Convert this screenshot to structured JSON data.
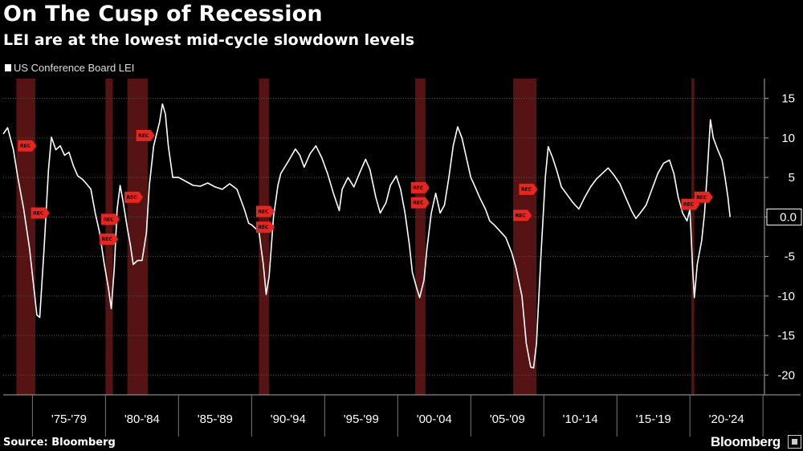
{
  "chart_data": {
    "type": "line",
    "title": "On The Cusp of Recession",
    "subtitle": "LEI are at the lowest mid-cycle slowdown levels",
    "series": [
      {
        "name": "US Conference Board LEI",
        "color": "#ffffff",
        "points": [
          [
            1973.0,
            10.5
          ],
          [
            1973.3,
            11.3
          ],
          [
            1973.7,
            8.5
          ],
          [
            1974.0,
            5.0
          ],
          [
            1974.4,
            1.0
          ],
          [
            1974.8,
            -4.0
          ],
          [
            1975.1,
            -9.0
          ],
          [
            1975.3,
            -12.4
          ],
          [
            1975.5,
            -12.7
          ],
          [
            1975.8,
            -4.0
          ],
          [
            1976.1,
            6.0
          ],
          [
            1976.3,
            10.1
          ],
          [
            1976.6,
            8.5
          ],
          [
            1976.9,
            9.0
          ],
          [
            1977.2,
            7.8
          ],
          [
            1977.5,
            8.2
          ],
          [
            1977.8,
            6.5
          ],
          [
            1978.1,
            5.2
          ],
          [
            1978.4,
            4.8
          ],
          [
            1978.7,
            4.2
          ],
          [
            1979.0,
            3.5
          ],
          [
            1979.3,
            0.5
          ],
          [
            1979.6,
            -2.0
          ],
          [
            1979.9,
            -5.8
          ],
          [
            1980.2,
            -9.0
          ],
          [
            1980.4,
            -11.6
          ],
          [
            1980.6,
            -6.5
          ],
          [
            1980.8,
            1.0
          ],
          [
            1981.0,
            4.0
          ],
          [
            1981.2,
            2.0
          ],
          [
            1981.5,
            -1.5
          ],
          [
            1981.7,
            -3.5
          ],
          [
            1981.9,
            -6.0
          ],
          [
            1982.2,
            -5.5
          ],
          [
            1982.5,
            -5.5
          ],
          [
            1982.8,
            -2.0
          ],
          [
            1983.0,
            4.0
          ],
          [
            1983.3,
            9.0
          ],
          [
            1983.7,
            12.0
          ],
          [
            1983.9,
            14.3
          ],
          [
            1984.1,
            13.0
          ],
          [
            1984.3,
            9.0
          ],
          [
            1984.6,
            5.0
          ],
          [
            1985.0,
            5.0
          ],
          [
            1985.5,
            4.5
          ],
          [
            1986.0,
            4.0
          ],
          [
            1986.5,
            3.9
          ],
          [
            1987.0,
            4.3
          ],
          [
            1987.5,
            3.8
          ],
          [
            1988.0,
            3.5
          ],
          [
            1988.5,
            4.2
          ],
          [
            1989.0,
            3.5
          ],
          [
            1989.5,
            1.0
          ],
          [
            1989.8,
            -0.8
          ],
          [
            1990.0,
            -1.0
          ],
          [
            1990.3,
            -1.5
          ],
          [
            1990.5,
            -1.8
          ],
          [
            1990.8,
            -6.0
          ],
          [
            1991.0,
            -9.8
          ],
          [
            1991.2,
            -7.5
          ],
          [
            1991.5,
            0.0
          ],
          [
            1991.8,
            4.0
          ],
          [
            1992.0,
            5.5
          ],
          [
            1992.5,
            7.0
          ],
          [
            1993.0,
            8.6
          ],
          [
            1993.3,
            7.8
          ],
          [
            1993.6,
            6.3
          ],
          [
            1994.0,
            8.0
          ],
          [
            1994.4,
            9.0
          ],
          [
            1994.8,
            7.5
          ],
          [
            1995.2,
            5.5
          ],
          [
            1995.6,
            3.0
          ],
          [
            1996.0,
            0.8
          ],
          [
            1996.2,
            3.5
          ],
          [
            1996.6,
            5.0
          ],
          [
            1997.0,
            3.8
          ],
          [
            1997.4,
            5.6
          ],
          [
            1997.8,
            7.3
          ],
          [
            1998.1,
            6.0
          ],
          [
            1998.5,
            2.5
          ],
          [
            1998.8,
            0.5
          ],
          [
            1999.2,
            1.8
          ],
          [
            1999.5,
            4.0
          ],
          [
            1999.9,
            5.2
          ],
          [
            2000.2,
            3.5
          ],
          [
            2000.5,
            0.5
          ],
          [
            2000.8,
            -3.5
          ],
          [
            2001.0,
            -7.0
          ],
          [
            2001.3,
            -9.0
          ],
          [
            2001.5,
            -10.2
          ],
          [
            2001.8,
            -8.0
          ],
          [
            2002.0,
            -4.0
          ],
          [
            2002.3,
            0.5
          ],
          [
            2002.6,
            3.0
          ],
          [
            2002.9,
            0.5
          ],
          [
            2003.2,
            1.5
          ],
          [
            2003.5,
            5.0
          ],
          [
            2003.8,
            9.0
          ],
          [
            2004.1,
            11.4
          ],
          [
            2004.4,
            10.0
          ],
          [
            2004.7,
            7.5
          ],
          [
            2005.0,
            5.0
          ],
          [
            2005.3,
            3.8
          ],
          [
            2005.6,
            2.5
          ],
          [
            2006.0,
            1.0
          ],
          [
            2006.3,
            -0.5
          ],
          [
            2006.6,
            -1.0
          ],
          [
            2007.0,
            -1.8
          ],
          [
            2007.4,
            -2.6
          ],
          [
            2007.8,
            -4.5
          ],
          [
            2008.1,
            -6.5
          ],
          [
            2008.5,
            -10.0
          ],
          [
            2008.8,
            -16.0
          ],
          [
            2009.1,
            -19.0
          ],
          [
            2009.3,
            -19.1
          ],
          [
            2009.5,
            -16.0
          ],
          [
            2009.8,
            -5.0
          ],
          [
            2010.1,
            5.0
          ],
          [
            2010.3,
            8.9
          ],
          [
            2010.6,
            7.5
          ],
          [
            2010.9,
            5.8
          ],
          [
            2011.2,
            3.8
          ],
          [
            2011.6,
            2.8
          ],
          [
            2012.0,
            1.8
          ],
          [
            2012.4,
            1.0
          ],
          [
            2012.8,
            2.5
          ],
          [
            2013.2,
            3.8
          ],
          [
            2013.6,
            4.8
          ],
          [
            2014.0,
            5.5
          ],
          [
            2014.4,
            6.2
          ],
          [
            2014.8,
            5.3
          ],
          [
            2015.2,
            4.2
          ],
          [
            2015.6,
            2.5
          ],
          [
            2016.0,
            0.8
          ],
          [
            2016.3,
            -0.2
          ],
          [
            2016.6,
            0.5
          ],
          [
            2017.0,
            1.5
          ],
          [
            2017.4,
            3.5
          ],
          [
            2017.8,
            5.5
          ],
          [
            2018.2,
            6.8
          ],
          [
            2018.6,
            7.2
          ],
          [
            2018.9,
            5.5
          ],
          [
            2019.2,
            2.5
          ],
          [
            2019.5,
            0.5
          ],
          [
            2019.8,
            -0.5
          ],
          [
            2020.0,
            1.0
          ],
          [
            2020.2,
            -7.0
          ],
          [
            2020.3,
            -10.2
          ],
          [
            2020.5,
            -6.0
          ],
          [
            2020.8,
            -3.0
          ],
          [
            2021.0,
            0.5
          ],
          [
            2021.2,
            6.0
          ],
          [
            2021.4,
            12.3
          ],
          [
            2021.6,
            10.0
          ],
          [
            2021.9,
            8.5
          ],
          [
            2022.2,
            7.2
          ],
          [
            2022.4,
            5.0
          ],
          [
            2022.6,
            2.5
          ],
          [
            2022.75,
            0.0
          ]
        ]
      }
    ],
    "recessions": [
      [
        1973.9,
        1975.2
      ],
      [
        1980.0,
        1980.5
      ],
      [
        1981.5,
        1982.9
      ],
      [
        1990.5,
        1991.2
      ],
      [
        2001.2,
        2001.9
      ],
      [
        2007.9,
        2009.5
      ],
      [
        2020.1,
        2020.3
      ]
    ],
    "rec_markers": [
      {
        "x": 1974.5,
        "y": 9.0
      },
      {
        "x": 1975.4,
        "y": 0.5
      },
      {
        "x": 1980.2,
        "y": -0.3
      },
      {
        "x": 1980.1,
        "y": -2.8
      },
      {
        "x": 1981.8,
        "y": 2.5
      },
      {
        "x": 1982.6,
        "y": 10.3
      },
      {
        "x": 1990.8,
        "y": 0.7
      },
      {
        "x": 1990.8,
        "y": -1.3
      },
      {
        "x": 2001.4,
        "y": 3.7
      },
      {
        "x": 2001.4,
        "y": 1.8
      },
      {
        "x": 2008.4,
        "y": 0.2
      },
      {
        "x": 2008.8,
        "y": 3.5
      },
      {
        "x": 2019.9,
        "y": 1.6
      },
      {
        "x": 2020.8,
        "y": 2.5
      }
    ],
    "rec_label": "REC",
    "x_ticks": [
      1975,
      1980,
      1985,
      1990,
      1995,
      2000,
      2005,
      2010,
      2015,
      2020
    ],
    "x_tick_labels": [
      "'75-'79",
      "'80-'84",
      "'85-'89",
      "'90-'94",
      "'95-'99",
      "'00-'04",
      "'05-'09",
      "'10-'14",
      "'15-'19",
      "'20-'24"
    ],
    "xlim": [
      1973.0,
      2025.1
    ],
    "ylim": [
      -22.5,
      17.5
    ],
    "y_ticks": [
      15,
      10,
      5,
      0,
      -5,
      -10,
      -15,
      -20
    ],
    "y_tick_labels": [
      "15",
      "10",
      "5",
      "0",
      "-5",
      "-10",
      "-15",
      "-20"
    ],
    "last_value_label": "0.0",
    "grid": true,
    "colors": {
      "background": "#000000",
      "line": "#ffffff",
      "recession": "#5a1414",
      "marker": "#e8251f",
      "grid": "#555555"
    }
  },
  "legend": {
    "label": "US Conference Board LEI"
  },
  "source": "Source: Bloomberg",
  "brand": "Bloomberg"
}
